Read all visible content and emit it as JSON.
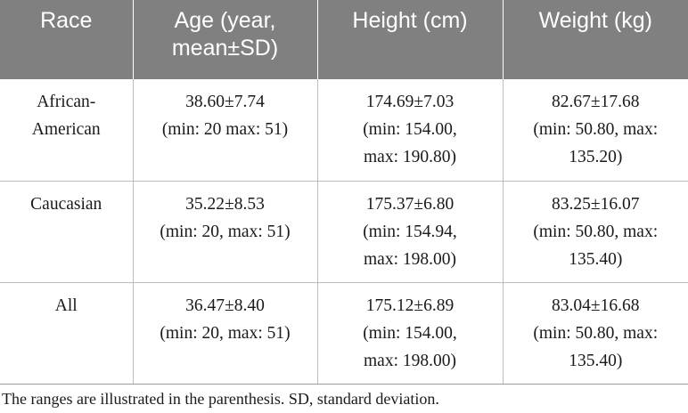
{
  "table": {
    "headers": [
      [
        "Race"
      ],
      [
        "Age (year,",
        "mean±SD)"
      ],
      [
        "Height (cm)"
      ],
      [
        "Weight (kg)"
      ]
    ],
    "rows": [
      {
        "race": [
          "African-",
          "American"
        ],
        "age": [
          "38.60±7.74",
          "(min: 20 max: 51)"
        ],
        "height": [
          "174.69±7.03",
          "(min: 154.00,",
          "max: 190.80)"
        ],
        "weight": [
          "82.67±17.68",
          "(min: 50.80, max:",
          "135.20)"
        ]
      },
      {
        "race": [
          "Caucasian"
        ],
        "age": [
          "35.22±8.53",
          "(min: 20, max: 51)"
        ],
        "height": [
          "175.37±6.80",
          "(min: 154.94,",
          "max: 198.00)"
        ],
        "weight": [
          "83.25±16.07",
          "(min: 50.80, max:",
          "135.40)"
        ]
      },
      {
        "race": [
          "All"
        ],
        "age": [
          "36.47±8.40",
          "(min: 20, max: 51)"
        ],
        "height": [
          "175.12±6.89",
          "(min: 154.00,",
          "max: 198.00)"
        ],
        "weight": [
          "83.04±16.68",
          "(min: 50.80, max:",
          "135.40)"
        ]
      }
    ]
  },
  "footnote": "The ranges are illustrated in the parenthesis. SD, standard deviation.",
  "colors": {
    "header_bg": "#808080",
    "header_text": "#ffffff",
    "grid": "#bdbdbd"
  }
}
